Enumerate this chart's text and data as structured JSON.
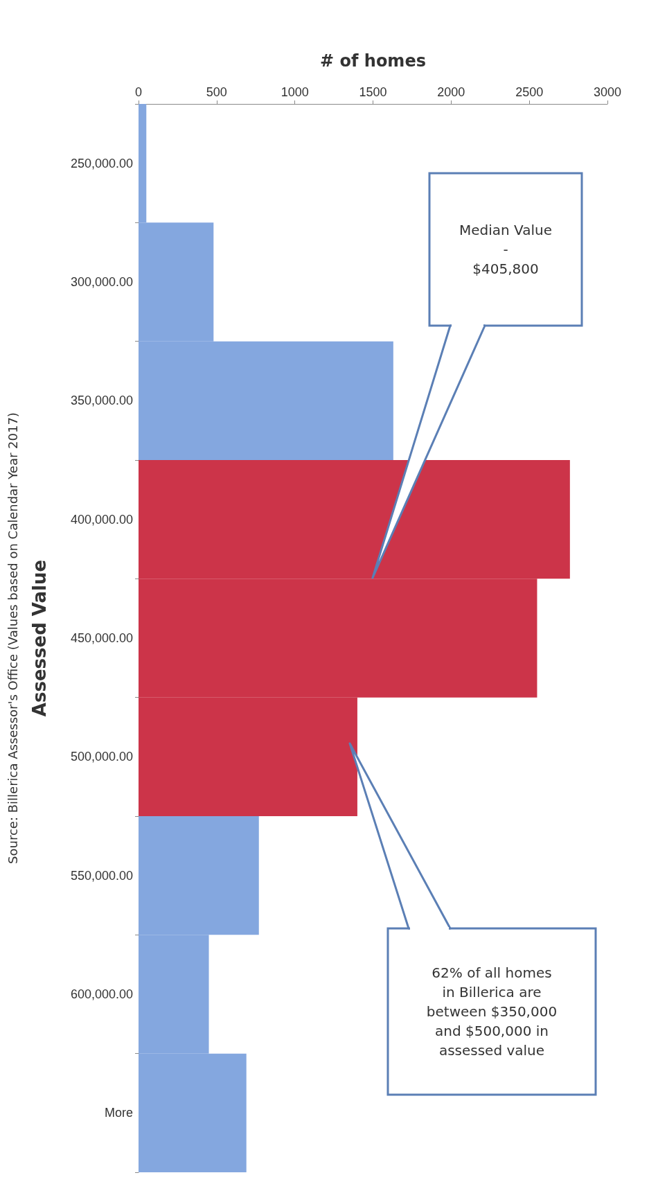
{
  "chart_data": {
    "type": "bar",
    "orientation": "horizontal",
    "xlabel": "# of homes",
    "ylabel": "Assessed Value",
    "categories": [
      "250,000.00",
      "300,000.00",
      "350,000.00",
      "400,000.00",
      "450,000.00",
      "500,000.00",
      "550,000.00",
      "600,000.00",
      "More"
    ],
    "values": [
      50,
      480,
      1630,
      2760,
      2550,
      1400,
      770,
      450,
      690
    ],
    "colors": [
      "#84a7df",
      "#84a7df",
      "#84a7df",
      "#cc3449",
      "#cc3449",
      "#cc3449",
      "#84a7df",
      "#84a7df",
      "#84a7df"
    ],
    "xlim": [
      0,
      3000
    ],
    "xticks": [
      0,
      500,
      1000,
      1500,
      2000,
      2500,
      3000
    ],
    "grid": false,
    "annotations": [
      "Median Value\n-\n$405,800",
      "62% of all homes\nin Billerica are\nbetween $350,000\nand $500,000 in\nassessed value",
      "Source: Billerica Assessor's Office (Values based on Calendar Year 2017)"
    ]
  }
}
